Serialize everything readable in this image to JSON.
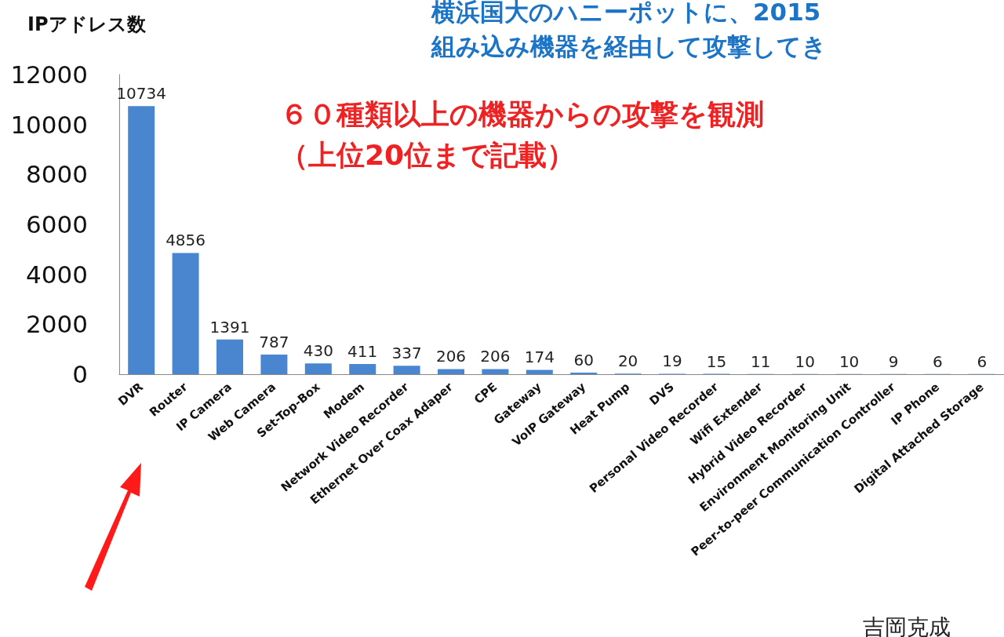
{
  "chart_data": {
    "type": "bar",
    "title": "横浜国大のハニーポットに、2015",
    "subtitle": "組み込み機器を経由して攻撃してき",
    "ylabel": "IPアドレス数",
    "categories": [
      "DVR",
      "Router",
      "IP Camera",
      "Web Camera",
      "Set-Top-Box",
      "Modem",
      "Network Video Recorder",
      "Ethernet Over Coax Adaper",
      "CPE",
      "Gateway",
      "VoIP Gateway",
      "Heat Pump",
      "DVS",
      "Personal Video Recorder",
      "Wifi Extender",
      "Hybrid Video Recorder",
      "Environment Monitoring Unit",
      "Peer-to-peer Communication Controller",
      "IP Phone",
      "Digital Attached Storage"
    ],
    "values": [
      10734,
      4856,
      1391,
      787,
      430,
      411,
      337,
      206,
      206,
      174,
      60,
      20,
      19,
      15,
      11,
      10,
      10,
      9,
      6,
      6
    ],
    "color": "#4a86d0",
    "ylim": [
      0,
      12000
    ],
    "yticks": [
      0,
      2000,
      4000,
      6000,
      8000,
      10000,
      12000
    ],
    "grid": false,
    "data_labels": true,
    "annotations": [
      "６０種類以上の機器からの攻撃を観測",
      "（上位20位まで記載）",
      "吉岡克成"
    ]
  }
}
